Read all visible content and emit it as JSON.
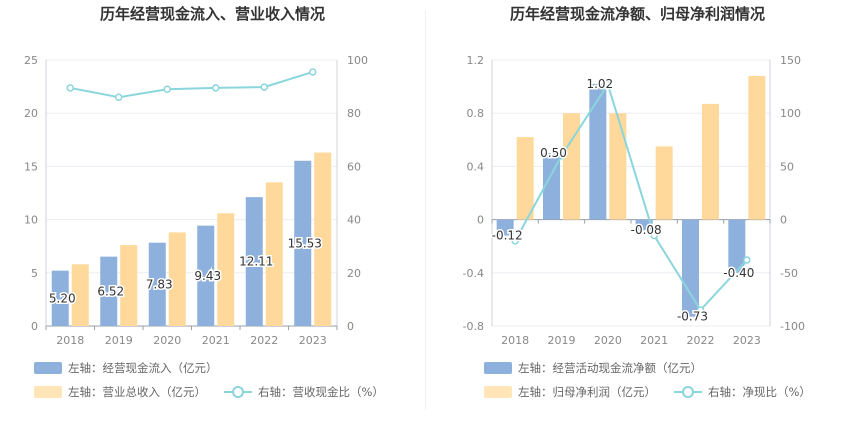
{
  "colors": {
    "bar_primary": "#8eb0dd",
    "bar_secondary": "#ffd99b",
    "line": "#8ad6dc",
    "grid": "#ebedf2",
    "axis_text": "#888888"
  },
  "chart_data": [
    {
      "type": "bar",
      "title": "历年经营现金流入、营业收入情况",
      "categories": [
        "2018",
        "2019",
        "2020",
        "2021",
        "2022",
        "2023"
      ],
      "y_left": {
        "min": 0,
        "max": 25,
        "ticks": [
          "0",
          "5",
          "10",
          "15",
          "20",
          "25"
        ]
      },
      "y_right": {
        "min": 0,
        "max": 100,
        "ticks": [
          "0",
          "20",
          "40",
          "60",
          "80",
          "100"
        ]
      },
      "series": [
        {
          "name": "左轴：经营现金流入（亿元）",
          "axis": "left",
          "kind": "bar",
          "color": "#8eb0dd",
          "values": [
            5.2,
            6.52,
            7.83,
            9.43,
            12.11,
            15.53
          ],
          "labels": [
            "5.20",
            "6.52",
            "7.83",
            "9.43",
            "12.11",
            "15.53"
          ]
        },
        {
          "name": "左轴：营业总收入（亿元）",
          "axis": "left",
          "kind": "bar",
          "color": "#ffd99b",
          "values": [
            5.8,
            7.6,
            8.8,
            10.6,
            13.5,
            16.3
          ]
        },
        {
          "name": "右轴：营收现金比（%）",
          "axis": "right",
          "kind": "line",
          "color": "#8ad6dc",
          "values": [
            89.5,
            86.0,
            89.0,
            89.5,
            89.8,
            95.5
          ]
        }
      ]
    },
    {
      "type": "bar",
      "title": "历年经营现金流净额、归母净利润情况",
      "categories": [
        "2018",
        "2019",
        "2020",
        "2021",
        "2022",
        "2023"
      ],
      "y_left": {
        "min": -0.8,
        "max": 1.2,
        "ticks": [
          "-0.8",
          "-0.4",
          "0",
          "0.4",
          "0.8",
          "1.2"
        ]
      },
      "y_right": {
        "min": -100,
        "max": 150,
        "ticks": [
          "-100",
          "-50",
          "0",
          "50",
          "100",
          "150"
        ]
      },
      "series": [
        {
          "name": "左轴：经营活动现金流净额（亿元）",
          "axis": "left",
          "kind": "bar",
          "color": "#8eb0dd",
          "values": [
            -0.12,
            0.5,
            1.02,
            -0.08,
            -0.73,
            -0.4
          ],
          "labels": [
            "-0.12",
            "0.50",
            "1.02",
            "-0.08",
            "-0.73",
            "-0.40"
          ]
        },
        {
          "name": "左轴：归母净利润（亿元）",
          "axis": "left",
          "kind": "bar",
          "color": "#ffd99b",
          "values": [
            0.62,
            0.8,
            0.8,
            0.55,
            0.87,
            1.08
          ]
        },
        {
          "name": "右轴：净现比（%）",
          "axis": "right",
          "kind": "line",
          "color": "#8ad6dc",
          "values": [
            -20,
            60,
            127,
            -15,
            -85,
            -38
          ]
        }
      ]
    }
  ]
}
